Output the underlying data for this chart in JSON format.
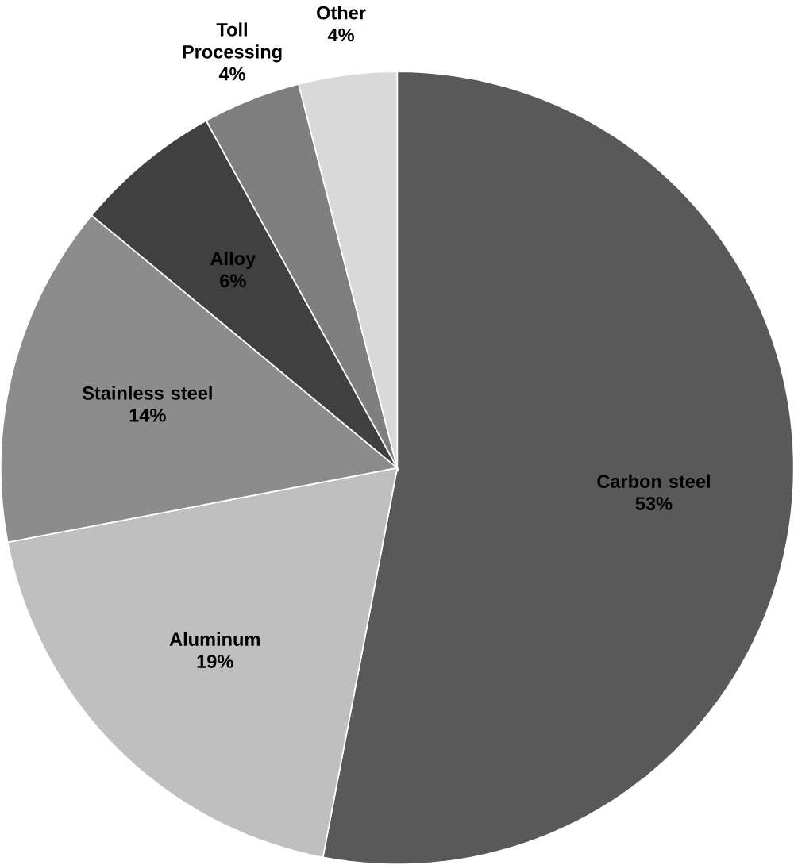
{
  "chart_data": {
    "type": "pie",
    "categories": [
      "Carbon steel",
      "Aluminum",
      "Stainless steel",
      "Alloy",
      "Toll Processing",
      "Other"
    ],
    "values": [
      53,
      19,
      14,
      6,
      4,
      4
    ],
    "value_labels": [
      "53%",
      "19%",
      "14%",
      "6%",
      "4%",
      "4%"
    ],
    "colors": [
      "#595959",
      "#bfbfbf",
      "#8c8c8c",
      "#404040",
      "#7f7f7f",
      "#d9d9d9"
    ]
  }
}
